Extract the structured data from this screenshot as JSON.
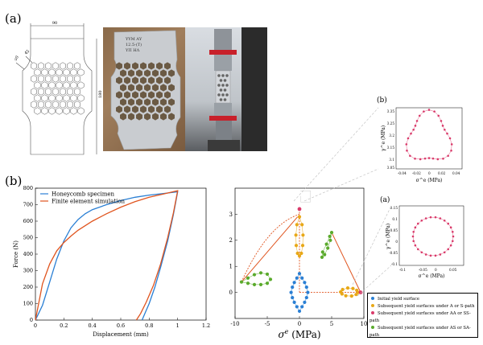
{
  "panel_labels": {
    "a": "(a)",
    "b": "(b)",
    "inset_b": "(b)",
    "inset_a": "(a)"
  },
  "drawing": {
    "top_dim": "90",
    "side_dim": "180",
    "rot_dim_a": "50",
    "rot_dim_b": "45"
  },
  "specimen_photo": {
    "text_lines": [
      "ΥΥΜ ΑΥ",
      "12.5-(T)",
      "ΥΠ ΗΛ"
    ]
  },
  "force_chart": {
    "legend": [
      {
        "label": "Honeycomb specimen",
        "color": "#2a7fd4"
      },
      {
        "label": "Finite element simulation",
        "color": "#e0541e"
      }
    ]
  },
  "yield_chart": {
    "xlabel_text": "σ",
    "xlabel_sup": "e",
    "xlabel_unit": " (MPa)"
  },
  "inset_b_chart": {
    "xlabel": "σ^e (MPa)",
    "ylabel": "γ^e (MPa)"
  },
  "inset_a_chart": {
    "xlabel": "σ^e (MPa)",
    "ylabel": "γ^e (MPa)"
  },
  "yield_legend": [
    {
      "label": "Initial yield surface",
      "color": "#2a7fd4"
    },
    {
      "label": "Subsequent yield surfaces under A or S-path",
      "color": "#e8a817"
    },
    {
      "label": "Subsequent yield surfaces under AA or SS-path",
      "color": "#d93a6a"
    },
    {
      "label": "Subsequent yield surfaces under AS or SA-path",
      "color": "#5aaa2c"
    }
  ],
  "chart_data": [
    {
      "type": "line",
      "xlabel": "Displacement (mm)",
      "ylabel": "Force (N)",
      "xlim": [
        0,
        1.2
      ],
      "ylim": [
        0,
        800
      ],
      "xticks": [
        "0",
        "0.2",
        "0.4",
        "0.6",
        "0.8",
        "1",
        "1.2"
      ],
      "yticks": [
        "0",
        "100",
        "200",
        "300",
        "400",
        "500",
        "600",
        "700",
        "800"
      ],
      "series": [
        {
          "name": "Honeycomb specimen",
          "color": "#2a7fd4",
          "x": [
            0,
            0.05,
            0.1,
            0.15,
            0.2,
            0.25,
            0.3,
            0.35,
            0.4,
            0.5,
            0.6,
            0.7,
            0.8,
            0.9,
            1.0,
            0.97,
            0.93,
            0.88,
            0.84,
            0.8,
            0.77,
            0.75
          ],
          "y": [
            0,
            90,
            230,
            370,
            480,
            560,
            610,
            645,
            670,
            700,
            725,
            745,
            758,
            768,
            778,
            640,
            480,
            320,
            200,
            100,
            40,
            0
          ]
        },
        {
          "name": "Finite element simulation",
          "color": "#e0541e",
          "x": [
            0,
            0.05,
            0.1,
            0.15,
            0.2,
            0.25,
            0.3,
            0.4,
            0.5,
            0.6,
            0.7,
            0.8,
            0.9,
            1.0,
            0.97,
            0.93,
            0.88,
            0.83,
            0.78,
            0.74,
            0.71
          ],
          "y": [
            0,
            220,
            340,
            420,
            470,
            510,
            545,
            600,
            645,
            685,
            718,
            745,
            765,
            785,
            650,
            500,
            340,
            210,
            110,
            40,
            0
          ]
        }
      ]
    },
    {
      "type": "scatter",
      "xlabel": "σ^e (MPa)",
      "ylabel": "γ^e (MPa)",
      "xlim": [
        -10,
        10
      ],
      "ylim": [
        -1,
        4
      ],
      "xticks": [
        "-10",
        "-5",
        "0",
        "5",
        "10"
      ],
      "yticks": [
        "0",
        "1",
        "2",
        "3"
      ],
      "series": [
        {
          "name": "Initial yield surface",
          "color": "#2a7fd4",
          "x": [
            0,
            0.4,
            0.8,
            1.1,
            1.3,
            1.1,
            0.8,
            0.4,
            0,
            -0.4,
            -0.8,
            -1.1,
            -1.3,
            -1.1,
            -0.8,
            -0.4
          ],
          "y": [
            0.72,
            0.55,
            0.38,
            0.2,
            0.0,
            -0.2,
            -0.38,
            -0.55,
            -0.72,
            -0.55,
            -0.38,
            -0.2,
            0.0,
            0.2,
            0.38,
            0.55
          ]
        },
        {
          "name": "Subsequent yield surfaces under A or S-path",
          "color": "#e8a817",
          "x": [
            0,
            0.4,
            0.55,
            0.5,
            0.3,
            0,
            -0.3,
            -0.5,
            -0.55,
            -0.4,
            7.5,
            8.3,
            8.9,
            9.1,
            8.8,
            8.1,
            7.2,
            6.6,
            6.4,
            6.7
          ],
          "y": [
            2.9,
            2.6,
            2.2,
            1.8,
            1.5,
            1.4,
            1.5,
            1.8,
            2.2,
            2.6,
            0.17,
            0.15,
            0.08,
            0.0,
            -0.08,
            -0.14,
            -0.13,
            -0.06,
            0.02,
            0.11
          ]
        },
        {
          "name": "Subsequent yield surfaces under AS or SA-path",
          "color": "#5aaa2c",
          "x": [
            -9,
            -8,
            -7,
            -6,
            -5,
            -4.5,
            -5,
            -6,
            -7,
            -8,
            5.0,
            4.8,
            4.4,
            3.9,
            3.5,
            3.6,
            4.2,
            4.7
          ],
          "y": [
            0.4,
            0.55,
            0.68,
            0.75,
            0.7,
            0.5,
            0.35,
            0.3,
            0.3,
            0.35,
            2.3,
            2.0,
            1.7,
            1.45,
            1.35,
            1.55,
            1.85,
            2.15
          ]
        },
        {
          "name": "Subsequent yield surfaces under AA or SS-path",
          "color": "#d93a6a",
          "x": [
            0,
            9.5
          ],
          "y": [
            3.2,
            0.0
          ]
        }
      ]
    }
  ]
}
